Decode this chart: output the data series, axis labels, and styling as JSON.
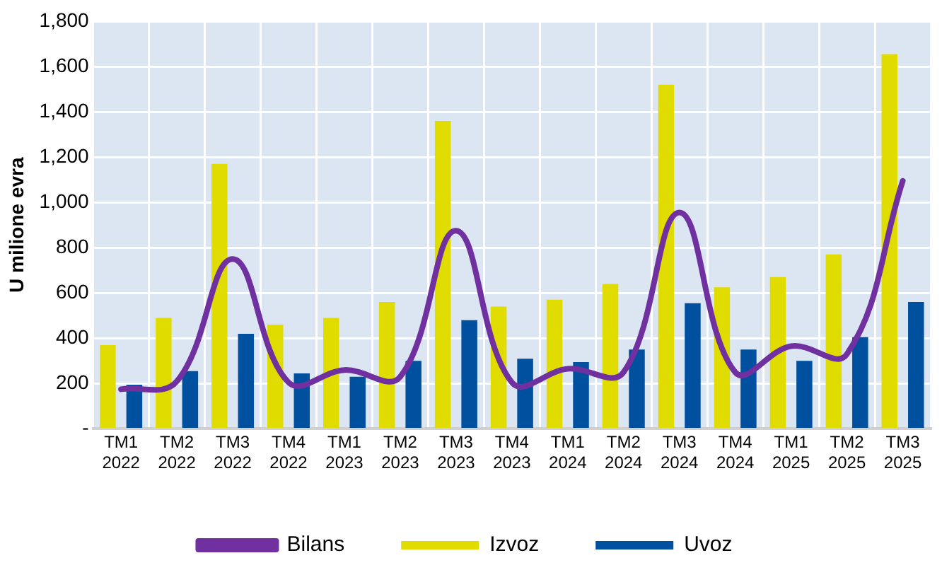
{
  "chart_data": {
    "type": "bar",
    "ylabel": "U milione evra",
    "categories": [
      "TM1\n2022",
      "TM2\n2022",
      "TM3\n2022",
      "TM4\n2022",
      "TM1\n2023",
      "TM2\n2023",
      "TM3\n2023",
      "TM4\n2023",
      "TM1\n2024",
      "TM2\n2024",
      "TM3\n2024",
      "TM4\n2024",
      "TM1\n2025",
      "TM2\n2025",
      "TM3\n2025"
    ],
    "series": [
      {
        "name": "Izvoz",
        "color": "#e1dc00",
        "values": [
          370,
          490,
          1170,
          460,
          490,
          560,
          1360,
          540,
          570,
          640,
          1520,
          625,
          670,
          770,
          1655
        ]
      },
      {
        "name": "Uvoz",
        "color": "#0050a0",
        "values": [
          195,
          255,
          420,
          245,
          230,
          300,
          480,
          310,
          295,
          350,
          555,
          350,
          300,
          405,
          560
        ]
      },
      {
        "name": "Bilans",
        "type": "line",
        "color": "#7030a0",
        "values": [
          175,
          210,
          750,
          205,
          260,
          230,
          875,
          205,
          265,
          250,
          955,
          250,
          365,
          330,
          1095
        ]
      }
    ],
    "ylim": [
      0,
      1800
    ],
    "yticks": [
      {
        "value": 0,
        "label": "-"
      },
      {
        "value": 200,
        "label": "200"
      },
      {
        "value": 400,
        "label": "400"
      },
      {
        "value": 600,
        "label": "600"
      },
      {
        "value": 800,
        "label": "800"
      },
      {
        "value": 1000,
        "label": "1,000"
      },
      {
        "value": 1200,
        "label": "1,200"
      },
      {
        "value": 1400,
        "label": "1,400"
      },
      {
        "value": 1600,
        "label": "1,600"
      },
      {
        "value": 1800,
        "label": "1,800"
      }
    ],
    "grid": true,
    "legend": "bottom"
  }
}
